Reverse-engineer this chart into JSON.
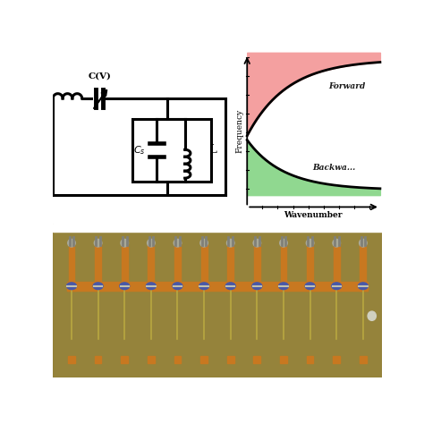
{
  "figure_bg": "#ffffff",
  "circuit_bg": "#ffffff",
  "disp_bg": "#ffffff",
  "dispersion_pink": "#F4A0A0",
  "dispersion_green": "#90D890",
  "dispersion_forward_label": "Forward",
  "dispersion_backward_label": "Backwa...",
  "dispersion_xlabel": "Wavenumber",
  "dispersion_ylabel": "Frequency",
  "board_color": "#9A8840",
  "copper_color": "#C87820",
  "wire_color": "#C0B060",
  "varactor_color": "#5060A0",
  "solder_color": "#B0B0A0",
  "lw": 2.2,
  "n_elements": 12
}
